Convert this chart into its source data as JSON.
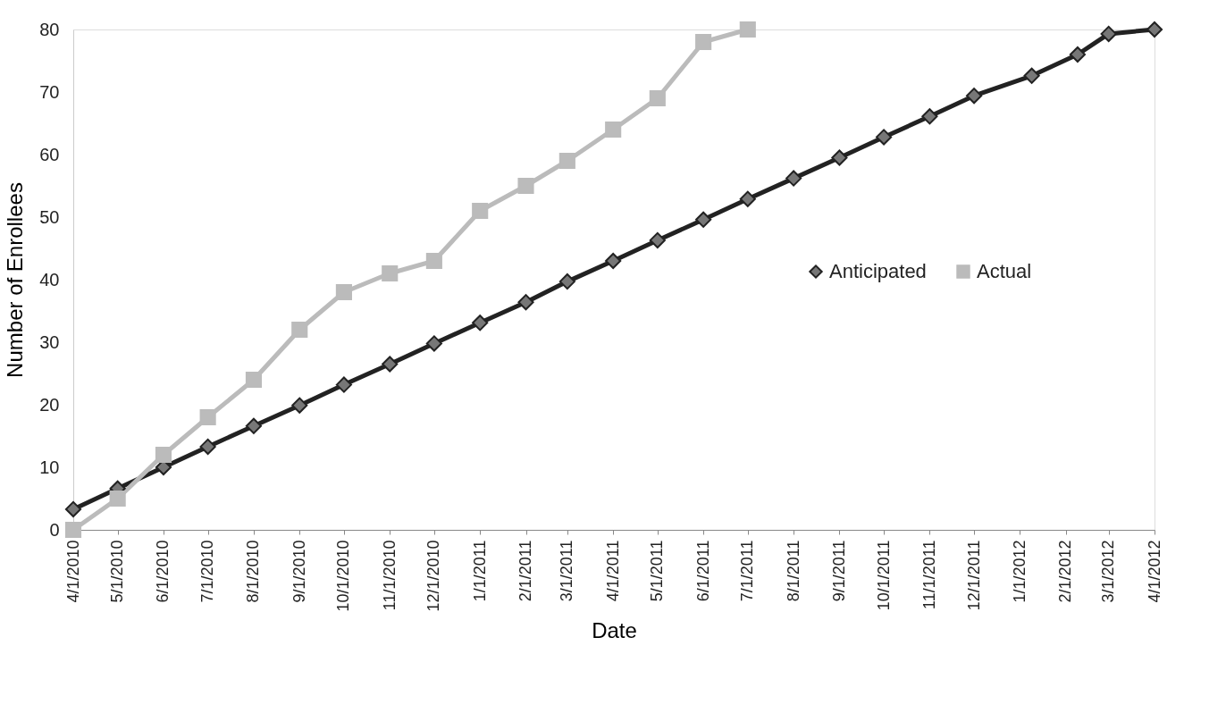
{
  "chart_data": {
    "type": "line",
    "xlabel": "Date",
    "ylabel": "Number of Enrollees",
    "xlim": [
      "2010-04-01",
      "2012-04-01"
    ],
    "xticks": [
      {
        "value": "2010-04-01",
        "label": "4/1/2010"
      },
      {
        "value": "2010-05-01",
        "label": "5/1/2010"
      },
      {
        "value": "2010-06-01",
        "label": "6/1/2010"
      },
      {
        "value": "2010-07-01",
        "label": "7/1/2010"
      },
      {
        "value": "2010-08-01",
        "label": "8/1/2010"
      },
      {
        "value": "2010-09-01",
        "label": "9/1/2010"
      },
      {
        "value": "2010-10-01",
        "label": "10/1/2010"
      },
      {
        "value": "2010-11-01",
        "label": "11/1/2010"
      },
      {
        "value": "2010-12-01",
        "label": "12/1/2010"
      },
      {
        "value": "2011-01-01",
        "label": "1/1/2011"
      },
      {
        "value": "2011-02-01",
        "label": "2/1/2011"
      },
      {
        "value": "2011-03-01",
        "label": "3/1/2011"
      },
      {
        "value": "2011-04-01",
        "label": "4/1/2011"
      },
      {
        "value": "2011-05-01",
        "label": "5/1/2011"
      },
      {
        "value": "2011-06-01",
        "label": "6/1/2011"
      },
      {
        "value": "2011-07-01",
        "label": "7/1/2011"
      },
      {
        "value": "2011-08-01",
        "label": "8/1/2011"
      },
      {
        "value": "2011-09-01",
        "label": "9/1/2011"
      },
      {
        "value": "2011-10-01",
        "label": "10/1/2011"
      },
      {
        "value": "2011-11-01",
        "label": "11/1/2011"
      },
      {
        "value": "2011-12-01",
        "label": "12/1/2011"
      },
      {
        "value": "2012-01-01",
        "label": "1/1/2012"
      },
      {
        "value": "2012-02-01",
        "label": "2/1/2012"
      },
      {
        "value": "2012-03-01",
        "label": "3/1/2012"
      },
      {
        "value": "2012-04-01",
        "label": "4/1/2012"
      }
    ],
    "ylim": [
      0,
      80
    ],
    "yticks": [
      0,
      10,
      20,
      30,
      40,
      50,
      60,
      70,
      80
    ],
    "grid": false,
    "legend": "right",
    "line_style": "solid",
    "series": [
      {
        "name": "Anticipated",
        "color": "#222222",
        "marker": "diamond",
        "x": [
          "2010-04-01",
          "2010-05-01",
          "2010-06-01",
          "2010-07-01",
          "2010-08-01",
          "2010-09-01",
          "2010-10-01",
          "2010-11-01",
          "2010-12-01",
          "2011-01-01",
          "2011-02-01",
          "2011-03-01",
          "2011-04-01",
          "2011-05-01",
          "2011-06-01",
          "2011-07-01",
          "2011-08-01",
          "2011-09-01",
          "2011-10-01",
          "2011-11-01",
          "2011-12-01",
          "2012-01-09",
          "2012-02-09",
          "2012-03-01",
          "2012-04-01"
        ],
        "values": [
          3.3,
          6.6,
          10,
          13.3,
          16.6,
          19.9,
          23.2,
          26.5,
          29.8,
          33.1,
          36.4,
          39.7,
          43,
          46.3,
          49.6,
          52.9,
          56.2,
          59.5,
          62.8,
          66.1,
          69.4,
          72.6,
          76,
          79.3,
          80
        ]
      },
      {
        "name": "Actual",
        "color": "#bbbbbb",
        "marker": "square",
        "x": [
          "2010-04-01",
          "2010-05-01",
          "2010-06-01",
          "2010-07-01",
          "2010-08-01",
          "2010-09-01",
          "2010-10-01",
          "2010-11-01",
          "2010-12-01",
          "2011-01-01",
          "2011-02-01",
          "2011-03-01",
          "2011-04-01",
          "2011-05-01",
          "2011-06-01",
          "2011-07-01"
        ],
        "values": [
          0,
          5,
          12,
          18,
          24,
          32,
          38,
          41,
          43,
          51,
          55,
          59,
          64,
          69,
          78,
          80
        ]
      }
    ]
  }
}
